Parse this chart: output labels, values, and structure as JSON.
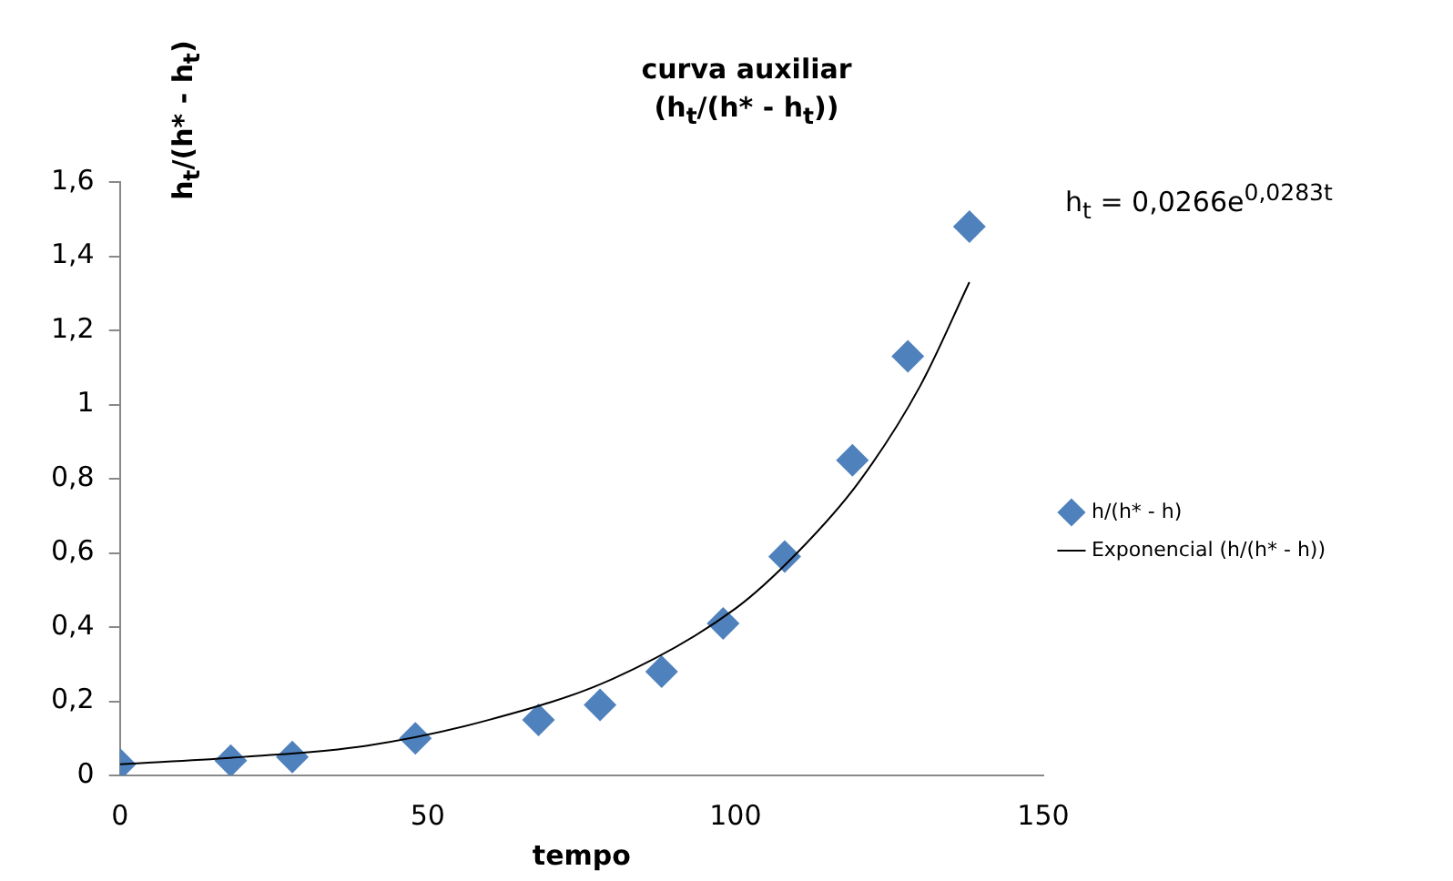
{
  "chart_data": {
    "type": "scatter",
    "title": "curva auxiliar\n(h$_{t}$/(h* - h$_{t}$))",
    "xlabel": "tempo",
    "ylabel": "h$_{t}$/(h* - h$_{t}$)",
    "annotations": [
      "h$_{t}$ = 0,0266e$^{0,0283t}$"
    ],
    "series": [
      {
        "name": "h/(h* - h)",
        "type": "scatter",
        "color": "#4f81bd",
        "marker": "diamond",
        "x": [
          0,
          18,
          28,
          48,
          68,
          78,
          88,
          98,
          108,
          119,
          128,
          138
        ],
        "values": [
          0.03,
          0.04,
          0.05,
          0.1,
          0.15,
          0.19,
          0.28,
          0.41,
          0.59,
          0.85,
          1.13,
          1.48
        ]
      },
      {
        "name": "Exponencial (h/(h* - h))",
        "type": "line",
        "color": "#000000",
        "marker": "none",
        "x": [
          0,
          20,
          40,
          60,
          80,
          100,
          110,
          120,
          130,
          138
        ],
        "values": [
          0.03,
          0.05,
          0.08,
          0.15,
          0.26,
          0.45,
          0.6,
          0.79,
          1.05,
          1.33
        ]
      }
    ],
    "xlim": [
      0,
      150
    ],
    "xticks": [
      0,
      50,
      100,
      150
    ],
    "ylim": [
      0,
      1.6
    ],
    "yticks": [
      0,
      {
        "value": 0.2,
        "label": "0,2"
      },
      {
        "value": 0.4,
        "label": "0,4"
      },
      {
        "value": 0.6,
        "label": "0,6"
      },
      {
        "value": 0.8,
        "label": "0,8"
      },
      1,
      {
        "value": 1.2,
        "label": "1,2"
      },
      {
        "value": 1.4,
        "label": "1,4"
      },
      {
        "value": 1.6,
        "label": "1,6"
      }
    ],
    "grid": false,
    "legend": "right"
  }
}
